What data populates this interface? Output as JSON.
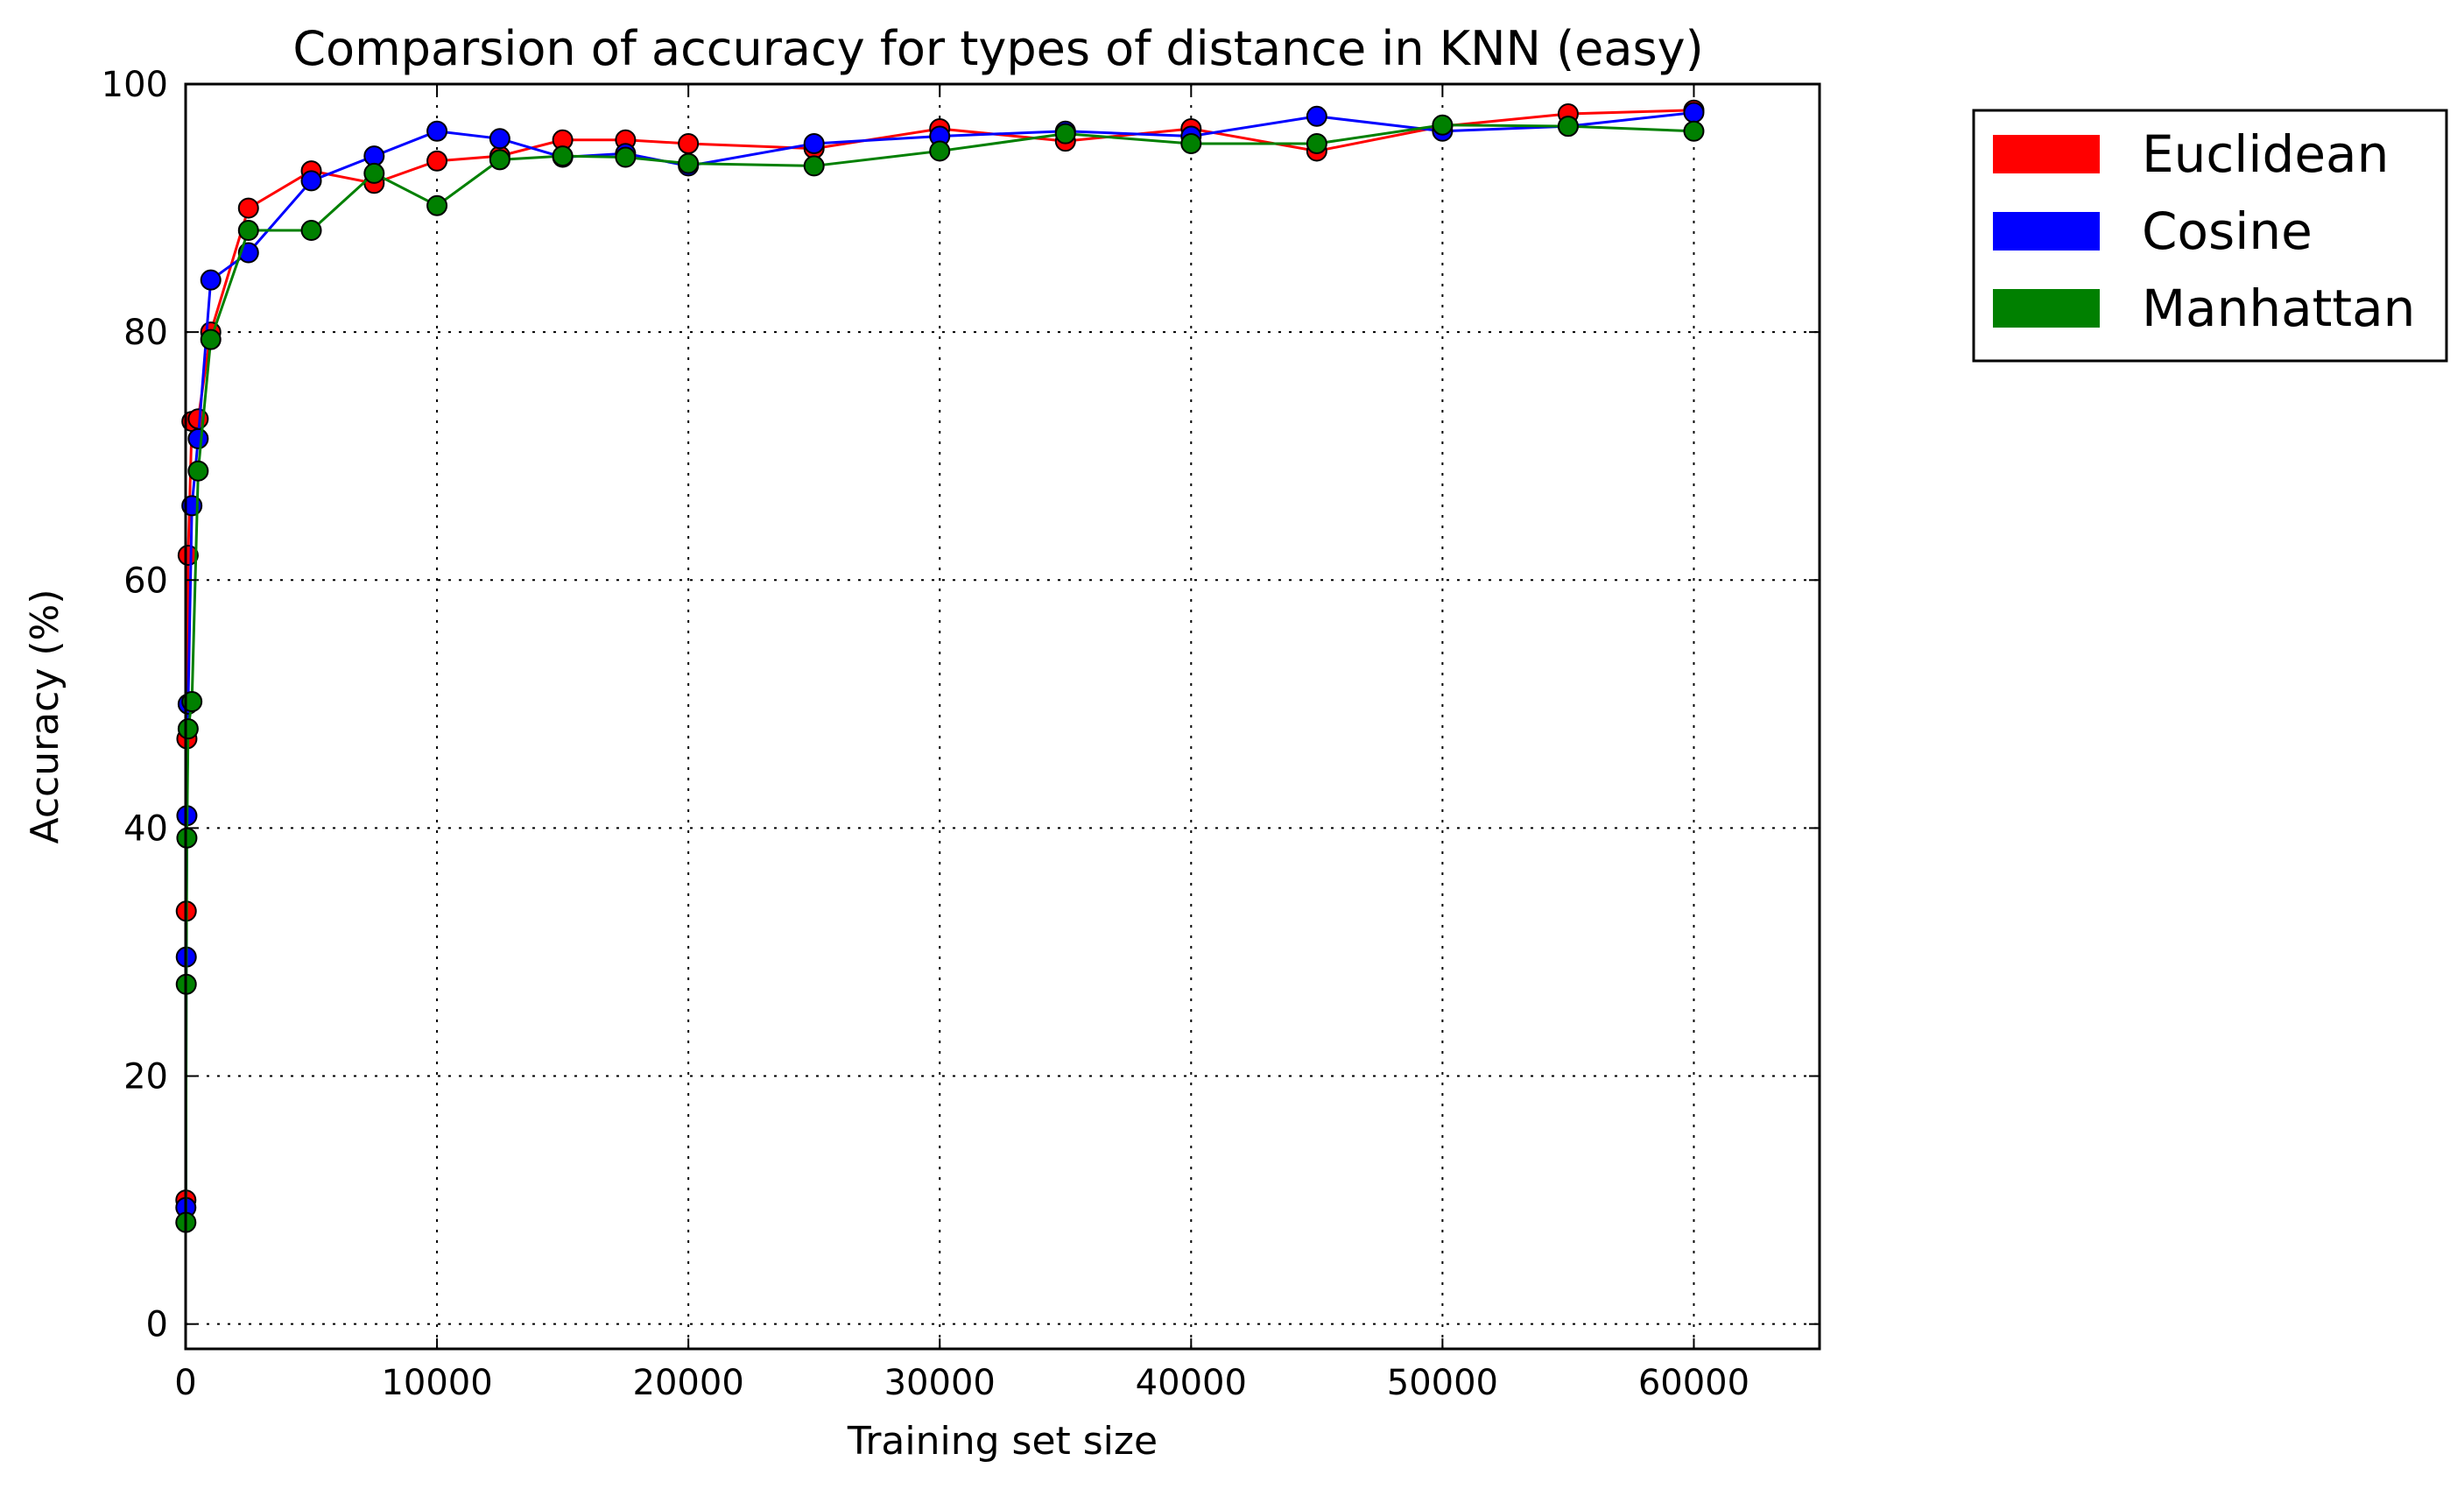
{
  "chart_data": {
    "type": "line",
    "title": "Comparsion of accuracy for types of distance in KNN (easy)",
    "xlabel": "Training set size",
    "ylabel": "Accuracy (%)",
    "xlim": [
      0,
      65000
    ],
    "ylim": [
      -2,
      100
    ],
    "xticks": [
      0,
      10000,
      20000,
      30000,
      40000,
      50000,
      60000
    ],
    "yticks": [
      0,
      20,
      40,
      60,
      80,
      100
    ],
    "grid": true,
    "legend_position": "outside-top-right",
    "series": [
      {
        "name": "Euclidean",
        "color": "#ff0000",
        "points": [
          [
            10,
            10
          ],
          [
            25,
            33.3
          ],
          [
            50,
            47.2
          ],
          [
            100,
            62
          ],
          [
            250,
            72.8
          ],
          [
            500,
            73
          ],
          [
            1000,
            80
          ],
          [
            2500,
            90
          ],
          [
            5000,
            93
          ],
          [
            7500,
            92
          ],
          [
            10000,
            93.8
          ],
          [
            12500,
            94.2
          ],
          [
            15000,
            95.5
          ],
          [
            17500,
            95.5
          ],
          [
            20000,
            95.2
          ],
          [
            25000,
            94.8
          ],
          [
            30000,
            96.4
          ],
          [
            35000,
            95.4
          ],
          [
            40000,
            96.4
          ],
          [
            45000,
            94.6
          ],
          [
            50000,
            96.6
          ],
          [
            55000,
            97.6
          ],
          [
            60000,
            97.9
          ]
        ]
      },
      {
        "name": "Cosine",
        "color": "#0000ff",
        "points": [
          [
            10,
            9.4
          ],
          [
            25,
            29.6
          ],
          [
            50,
            41
          ],
          [
            100,
            50
          ],
          [
            250,
            66
          ],
          [
            500,
            71.4
          ],
          [
            1000,
            84.2
          ],
          [
            2500,
            86.4
          ],
          [
            5000,
            92.2
          ],
          [
            7500,
            94.2
          ],
          [
            10000,
            96.2
          ],
          [
            12500,
            95.6
          ],
          [
            15000,
            94.1
          ],
          [
            17500,
            94.4
          ],
          [
            20000,
            93.4
          ],
          [
            25000,
            95.2
          ],
          [
            30000,
            95.8
          ],
          [
            35000,
            96.2
          ],
          [
            40000,
            95.8
          ],
          [
            45000,
            97.4
          ],
          [
            50000,
            96.2
          ],
          [
            55000,
            96.6
          ],
          [
            60000,
            97.7
          ]
        ]
      },
      {
        "name": "Manhattan",
        "color": "#008000",
        "points": [
          [
            10,
            8.2
          ],
          [
            25,
            27.4
          ],
          [
            50,
            39.2
          ],
          [
            100,
            48
          ],
          [
            250,
            50.2
          ],
          [
            500,
            68.8
          ],
          [
            1000,
            79.4
          ],
          [
            2500,
            88.2
          ],
          [
            5000,
            88.2
          ],
          [
            7500,
            92.8
          ],
          [
            10000,
            90.2
          ],
          [
            12500,
            93.9
          ],
          [
            15000,
            94.2
          ],
          [
            17500,
            94.1
          ],
          [
            20000,
            93.6
          ],
          [
            25000,
            93.4
          ],
          [
            30000,
            94.6
          ],
          [
            35000,
            96.0
          ],
          [
            40000,
            95.2
          ],
          [
            45000,
            95.2
          ],
          [
            50000,
            96.7
          ],
          [
            55000,
            96.6
          ],
          [
            60000,
            96.2
          ]
        ]
      }
    ]
  }
}
